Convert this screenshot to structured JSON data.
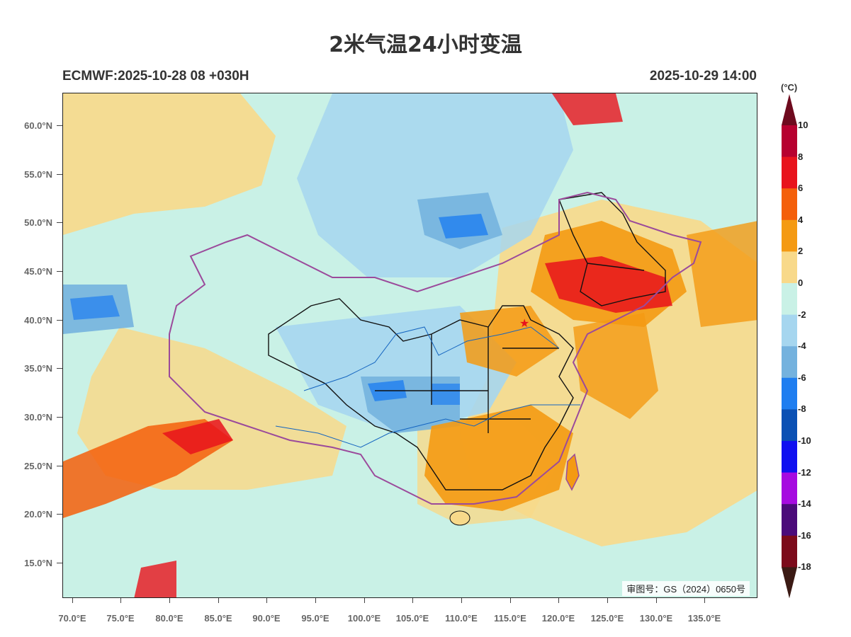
{
  "title": "2米气温24小时变温",
  "subtitle_left": "ECMWF:2025-10-28 08 +030H",
  "subtitle_right": "2025-10-29 14:00",
  "map_stamp": "审图号：GS（2024）0650号",
  "y_ticks": [
    "60.0°N",
    "55.0°N",
    "50.0°N",
    "45.0°N",
    "40.0°N",
    "35.0°N",
    "30.0°N",
    "25.0°N",
    "20.0°N",
    "15.0°N"
  ],
  "x_ticks": [
    "70.0°E",
    "75.0°E",
    "80.0°E",
    "85.0°E",
    "90.0°E",
    "95.0°E",
    "100.0°E",
    "105.0°E",
    "110.0°E",
    "115.0°E",
    "120.0°E",
    "125.0°E",
    "130.0°E",
    "135.0°E"
  ],
  "colorbar": {
    "unit": "(°C)",
    "labels": [
      "10",
      "8",
      "6",
      "4",
      "2",
      "0",
      "-2",
      "-4",
      "-6",
      "-8",
      "-10",
      "-12",
      "-14",
      "-16",
      "-18"
    ],
    "colors": [
      "#6e0a1e",
      "#b7002f",
      "#e8131c",
      "#f45f0a",
      "#f49a13",
      "#f8d98a",
      "#c9f1e6",
      "#a6d6ef",
      "#74b2de",
      "#1f7ef0",
      "#0a50b4",
      "#1010f0",
      "#a60ae0",
      "#4b0a7a",
      "#7c0a1a",
      "#3b1a14"
    ]
  }
}
